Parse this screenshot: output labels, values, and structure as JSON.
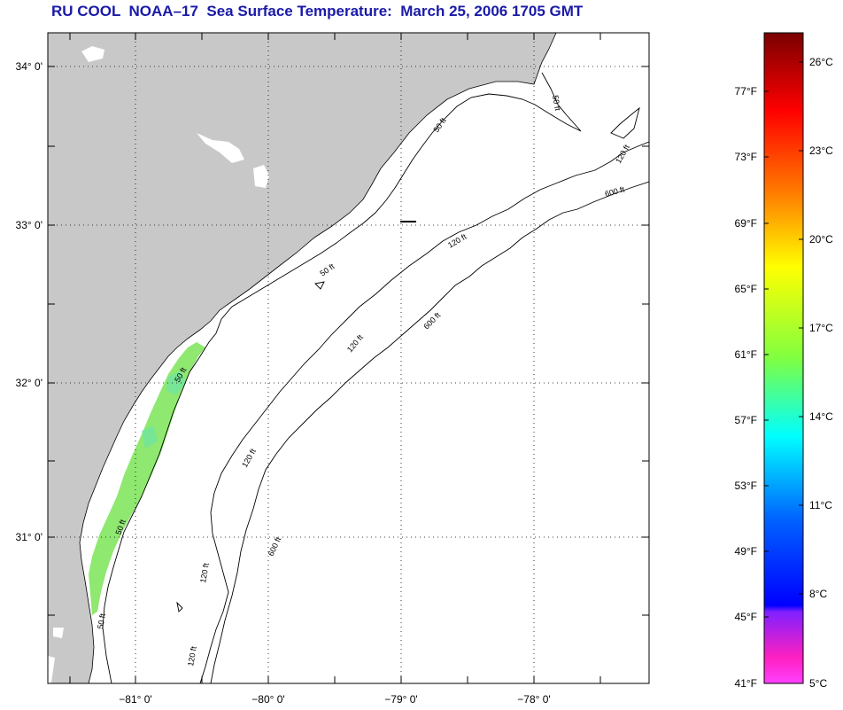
{
  "title": "RU COOL  NOAA–17  Sea Surface Temperature:  March 25, 2006 1705 GMT",
  "map": {
    "lat_labels": [
      "34° 0'",
      "33° 0'",
      "32° 0'",
      "31° 0'"
    ],
    "lon_labels": [
      "−81° 0'",
      "−80° 0'",
      "−79° 0'",
      "−78° 0'"
    ],
    "contours": [
      "50 ft",
      "120 ft",
      "600 ft"
    ],
    "colors": {
      "land": "#c8c8c8",
      "water": "#ffffff",
      "sst_plume": "#8fe870",
      "sst_edge": "#70e4a0"
    }
  },
  "colorbar": {
    "fahrenheit_labels": [
      "77°F",
      "73°F",
      "69°F",
      "65°F",
      "61°F",
      "57°F",
      "53°F",
      "49°F",
      "45°F",
      "41°F"
    ],
    "celsius_labels": [
      "26°C",
      "23°C",
      "20°C",
      "17°C",
      "14°C",
      "11°C",
      "8°C",
      "5°C"
    ],
    "stops": [
      "#7a0000",
      "#ff0000",
      "#ff8000",
      "#ffff00",
      "#80ff40",
      "#00ffff",
      "#0060ff",
      "#0000ff",
      "#8020ff",
      "#ff20c0",
      "#ff40ff"
    ]
  }
}
